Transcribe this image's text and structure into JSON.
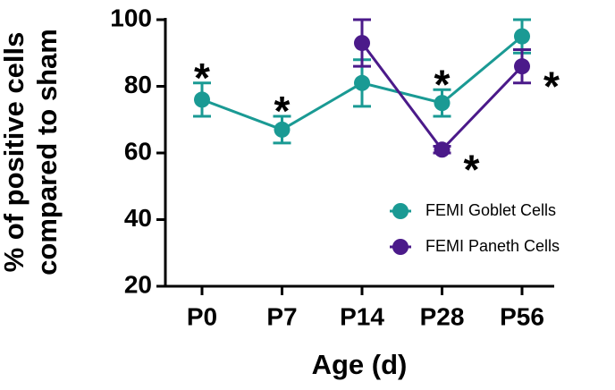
{
  "chart_data": {
    "type": "line",
    "xlabel": "Age (d)",
    "ylabel": [
      "% of positive cells",
      "compared to sham"
    ],
    "categories": [
      "P0",
      "P7",
      "P14",
      "P28",
      "P56"
    ],
    "series": [
      {
        "name": "FEMI Goblet Cells",
        "color": "#1a9a94",
        "values": [
          76,
          67,
          81,
          75,
          95
        ],
        "errors": [
          5,
          4,
          7,
          4,
          5
        ]
      },
      {
        "name": "FEMI Paneth Cells",
        "color": "#4b1a8a",
        "values": [
          null,
          null,
          93,
          61,
          86
        ],
        "errors": [
          null,
          null,
          7,
          1,
          5
        ]
      }
    ],
    "ylim": [
      20,
      100
    ],
    "yticks": [
      20,
      40,
      60,
      80,
      100
    ],
    "legend": "lower right",
    "annotations": [
      {
        "text": "*",
        "category": "P0",
        "series": 0,
        "position": "above"
      },
      {
        "text": "*",
        "category": "P7",
        "series": 0,
        "position": "above"
      },
      {
        "text": "*",
        "category": "P28",
        "series": 0,
        "position": "above"
      },
      {
        "text": "*",
        "category": "P28",
        "series": 1,
        "position": "right"
      },
      {
        "text": "*",
        "category": "P56",
        "series": 1,
        "position": "right"
      }
    ]
  }
}
